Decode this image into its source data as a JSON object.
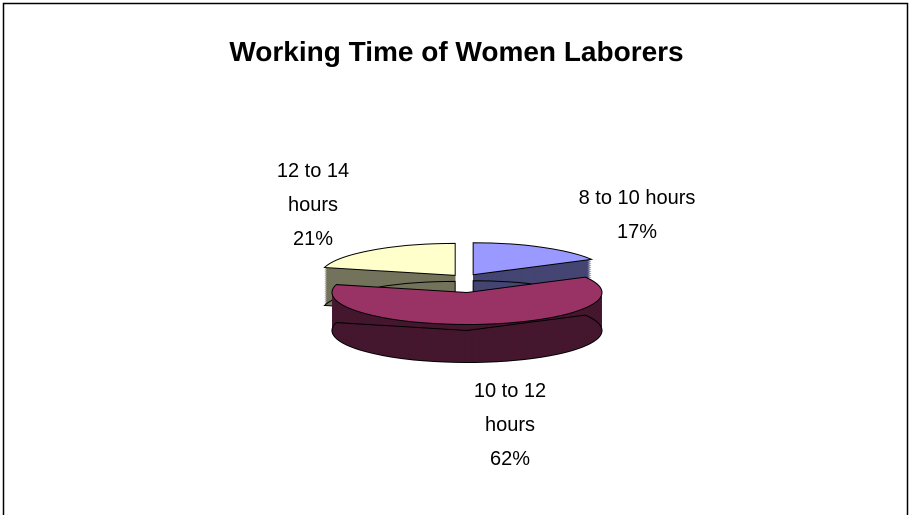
{
  "chart_data": {
    "type": "pie",
    "title": "Working Time of Women Laborers",
    "categories": [
      "8 to 10 hours",
      "10 to 12 hours",
      "12 to 14 hours"
    ],
    "values": [
      17,
      62,
      21
    ],
    "value_labels": [
      "17%",
      "62%",
      "21%"
    ],
    "colors": [
      "#9999ff",
      "#993366",
      "#ffffcc"
    ]
  }
}
